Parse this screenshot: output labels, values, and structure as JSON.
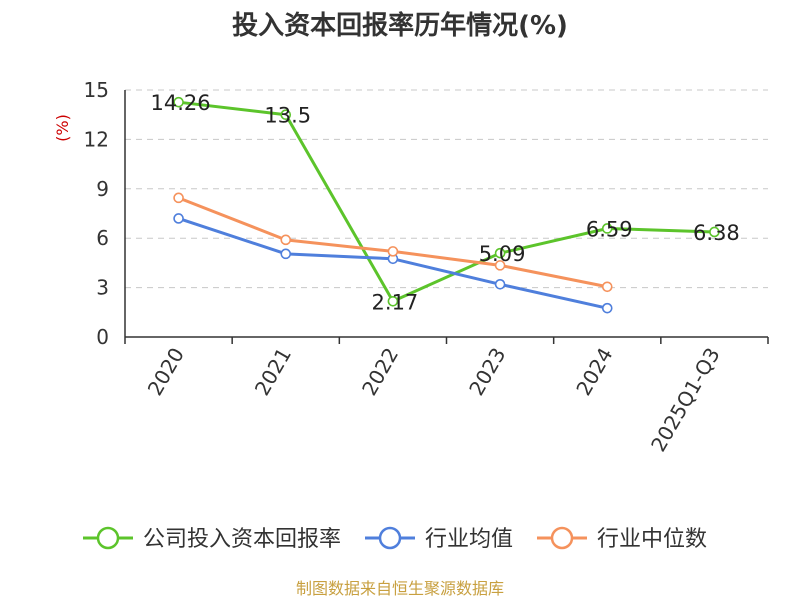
{
  "chart_data": {
    "type": "line",
    "title": "投入资本回报率历年情况(%)",
    "ylabel": "(%)",
    "ylim": [
      0,
      15
    ],
    "yticks": [
      0,
      3,
      6,
      9,
      12,
      15
    ],
    "grid": true,
    "legend_position": "bottom",
    "categories": [
      "2020",
      "2021",
      "2022",
      "2023",
      "2024",
      "2025Q1-Q3"
    ],
    "series": [
      {
        "name": "公司投入资本回报率",
        "color": "#5cc42b",
        "values": [
          14.26,
          13.5,
          2.17,
          5.09,
          6.59,
          6.38
        ],
        "labels": [
          "14.26",
          "13.5",
          "2.17",
          "5.09",
          "6.59",
          "6.38"
        ]
      },
      {
        "name": "行业均值",
        "color": "#4f7fdc",
        "values": [
          7.2,
          5.05,
          4.75,
          3.2,
          1.75,
          null
        ]
      },
      {
        "name": "行业中位数",
        "color": "#f5925c",
        "values": [
          8.45,
          5.9,
          5.2,
          4.35,
          3.05,
          null
        ]
      }
    ]
  },
  "source": "制图数据来自恒生聚源数据库"
}
